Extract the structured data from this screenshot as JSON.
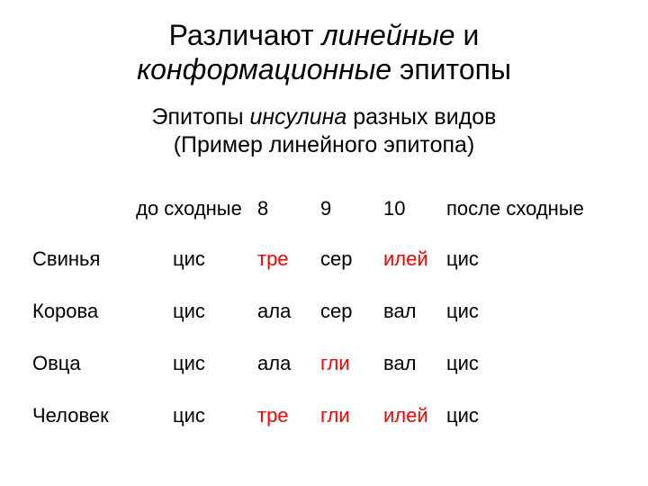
{
  "title": {
    "part1": "Различают ",
    "italic1": "линейные",
    "part2": " и ",
    "italic2": "конформационные",
    "part3": " эпитопы"
  },
  "subtitle": {
    "part1": "Эпитопы ",
    "italic1": "инсулина",
    "part2": " разных видов",
    "part3": "(Пример линейного эпитопа)"
  },
  "table": {
    "columns": [
      "",
      "до сходные",
      "8",
      "9",
      "10",
      "после сходные"
    ],
    "rows": [
      {
        "label": "Свинья",
        "before": "цис",
        "c8": "тре",
        "c9": "сер",
        "c10": "илей",
        "after": "цис",
        "h8": true,
        "h9": false,
        "h10": true
      },
      {
        "label": "Корова",
        "before": "цис",
        "c8": "ала",
        "c9": "сер",
        "c10": "вал",
        "after": "цис",
        "h8": false,
        "h9": false,
        "h10": false
      },
      {
        "label": "Овца",
        "before": "цис",
        "c8": "ала",
        "c9": "гли",
        "c10": "вал",
        "after": "цис",
        "h8": false,
        "h9": true,
        "h10": false
      },
      {
        "label": "Человек",
        "before": "цис",
        "c8": "тре",
        "c9": "гли",
        "c10": "илей",
        "after": "цис",
        "h8": true,
        "h9": true,
        "h10": true
      }
    ],
    "highlight_color": "#ff0000",
    "text_color": "#000000",
    "background_color": "#ffffff",
    "font_size": 22
  }
}
